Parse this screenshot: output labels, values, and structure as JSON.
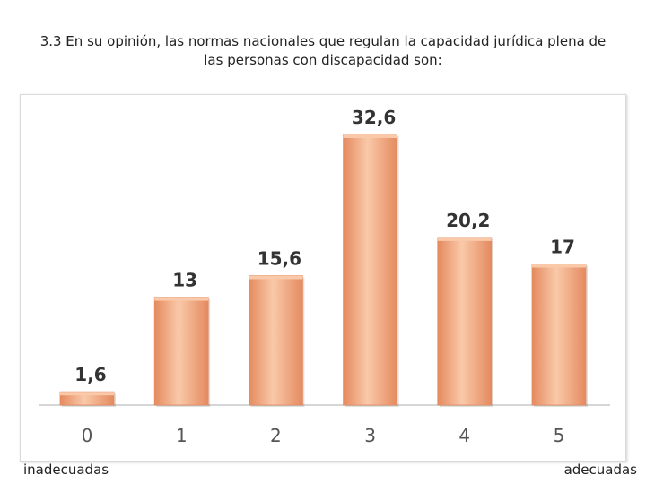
{
  "title_line1": "3.3 En su opinión, las normas nacionales que regulan la capacidad jurídica plena de",
  "title_line2": "las personas con discapacidad son:",
  "footer": {
    "left_label": "inadecuadas",
    "right_label": "adecuadas"
  },
  "colors": {
    "bar_fill": "#f4a27c",
    "bar_light": "#f9c9a9",
    "bar_dark": "#e58a5f",
    "axis": "#c8c8c8",
    "label_text": "#333333",
    "tick_text": "#555555"
  },
  "chart_data": {
    "type": "bar",
    "title": "3.3 En su opinión, las normas nacionales que regulan la capacidad jurídica plena de las personas con discapacidad son:",
    "categories": [
      "0",
      "1",
      "2",
      "3",
      "4",
      "5"
    ],
    "values": [
      1.6,
      13,
      15.6,
      32.6,
      20.2,
      17
    ],
    "data_labels": [
      "1,6",
      "13",
      "15,6",
      "32,6",
      "20,2",
      "17"
    ],
    "xlabel": "",
    "ylabel": "",
    "ylim": [
      0,
      35
    ],
    "grid": false,
    "legend": "none"
  }
}
